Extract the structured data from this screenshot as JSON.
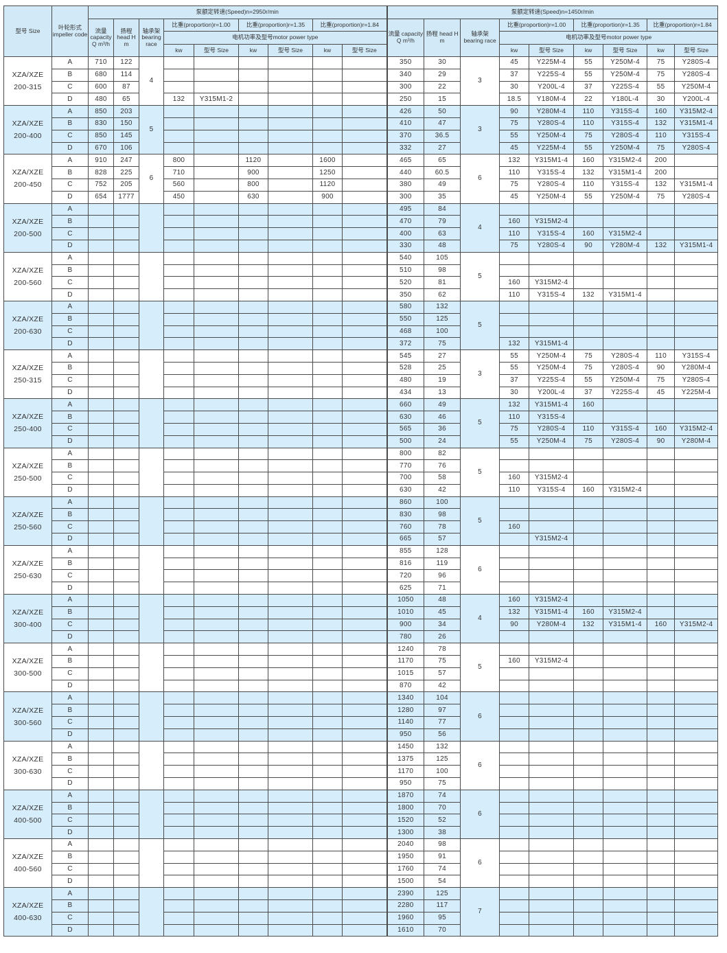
{
  "header": {
    "size": "型号 Size",
    "impeller": "叶轮形式 impeller code",
    "capacity": "流量 capacity Q m³/h",
    "head": "扬程 head H m",
    "bearing": "轴承架 bearing race",
    "speed_left": "泵额定转速(Speed)n=2950r/min",
    "speed_right": "泵额定转速(Speed)n=1450r/min",
    "prop_100": "比重(proportion)r=1.00",
    "prop_135": "比重(proportion)r=1.35",
    "prop_184": "比重(proportion)r=1.84",
    "motor_type": "电机功率及型号motor power type",
    "kw": "kw",
    "model_size": "型号 Size"
  },
  "groups": [
    {
      "size": "XZA/XZE 200-315",
      "race_l": "4",
      "race_r": "3",
      "rows": [
        {
          "c": "A",
          "l": [
            "710",
            "122"
          ],
          "r": [
            "350",
            "30",
            "45",
            "Y225M-4",
            "55",
            "Y250M-4",
            "75",
            "Y280S-4"
          ]
        },
        {
          "c": "B",
          "l": [
            "680",
            "114"
          ],
          "r": [
            "340",
            "29",
            "37",
            "Y225S-4",
            "55",
            "Y250M-4",
            "75",
            "Y280S-4"
          ]
        },
        {
          "c": "C",
          "l": [
            "600",
            "87"
          ],
          "r": [
            "300",
            "22",
            "30",
            "Y200L-4",
            "37",
            "Y225S-4",
            "55",
            "Y250M-4"
          ]
        },
        {
          "c": "D",
          "l": [
            "480",
            "65",
            "132",
            "Y315M1-2"
          ],
          "r": [
            "250",
            "15",
            "18.5",
            "Y180M-4",
            "22",
            "Y180L-4",
            "30",
            "Y200L-4"
          ]
        }
      ]
    },
    {
      "size": "XZA/XZE 200-400",
      "race_l": "5",
      "race_r": "3",
      "rows": [
        {
          "c": "A",
          "l": [
            "850",
            "203"
          ],
          "r": [
            "426",
            "50",
            "90",
            "Y280M-4",
            "110",
            "Y315S-4",
            "160",
            "Y315M2-4"
          ]
        },
        {
          "c": "B",
          "l": [
            "830",
            "150"
          ],
          "r": [
            "410",
            "47",
            "75",
            "Y280S-4",
            "110",
            "Y315S-4",
            "132",
            "Y315M1-4"
          ]
        },
        {
          "c": "C",
          "l": [
            "850",
            "145"
          ],
          "r": [
            "370",
            "36.5",
            "55",
            "Y250M-4",
            "75",
            "Y280S-4",
            "110",
            "Y315S-4"
          ]
        },
        {
          "c": "D",
          "l": [
            "670",
            "106"
          ],
          "r": [
            "332",
            "27",
            "45",
            "Y225M-4",
            "55",
            "Y250M-4",
            "75",
            "Y280S-4"
          ]
        }
      ]
    },
    {
      "size": "XZA/XZE 200-450",
      "race_l": "6",
      "race_r": "6",
      "rows": [
        {
          "c": "A",
          "l": [
            "910",
            "247",
            "800",
            "",
            "1120",
            "",
            "1600",
            ""
          ],
          "r": [
            "465",
            "65",
            "132",
            "Y315M1-4",
            "160",
            "Y315M2-4",
            "200",
            ""
          ]
        },
        {
          "c": "B",
          "l": [
            "828",
            "225",
            "710",
            "",
            "900",
            "",
            "1250",
            ""
          ],
          "r": [
            "440",
            "60.5",
            "110",
            "Y315S-4",
            "132",
            "Y315M1-4",
            "200",
            ""
          ]
        },
        {
          "c": "C",
          "l": [
            "752",
            "205",
            "560",
            "",
            "800",
            "",
            "1120",
            ""
          ],
          "r": [
            "380",
            "49",
            "75",
            "Y280S-4",
            "110",
            "Y315S-4",
            "132",
            "Y315M1-4"
          ]
        },
        {
          "c": "D",
          "l": [
            "654",
            "1777",
            "450",
            "",
            "630",
            "",
            "900",
            ""
          ],
          "r": [
            "300",
            "35",
            "45",
            "Y250M-4",
            "55",
            "Y250M-4",
            "75",
            "Y280S-4"
          ]
        }
      ]
    },
    {
      "size": "XZA/XZE 200-500",
      "race_l": "",
      "race_r": "4",
      "rows": [
        {
          "c": "A",
          "l": [],
          "r": [
            "495",
            "84"
          ]
        },
        {
          "c": "B",
          "l": [],
          "r": [
            "470",
            "79",
            "160",
            "Y315M2-4"
          ]
        },
        {
          "c": "C",
          "l": [],
          "r": [
            "400",
            "63",
            "110",
            "Y315S-4",
            "160",
            "Y315M2-4"
          ]
        },
        {
          "c": "D",
          "l": [],
          "r": [
            "330",
            "48",
            "75",
            "Y280S-4",
            "90",
            "Y280M-4",
            "132",
            "Y315M1-4"
          ]
        }
      ]
    },
    {
      "size": "XZA/XZE 200-560",
      "race_l": "",
      "race_r": "5",
      "rows": [
        {
          "c": "A",
          "l": [],
          "r": [
            "540",
            "105"
          ]
        },
        {
          "c": "B",
          "l": [],
          "r": [
            "510",
            "98"
          ]
        },
        {
          "c": "C",
          "l": [],
          "r": [
            "520",
            "81",
            "160",
            "Y315M2-4"
          ]
        },
        {
          "c": "D",
          "l": [],
          "r": [
            "350",
            "62",
            "110",
            "Y315S-4",
            "132",
            "Y315M1-4"
          ]
        }
      ]
    },
    {
      "size": "XZA/XZE 200-630",
      "race_l": "",
      "race_r": "5",
      "rows": [
        {
          "c": "A",
          "l": [],
          "r": [
            "580",
            "132"
          ]
        },
        {
          "c": "B",
          "l": [],
          "r": [
            "550",
            "125"
          ]
        },
        {
          "c": "C",
          "l": [],
          "r": [
            "468",
            "100"
          ]
        },
        {
          "c": "D",
          "l": [],
          "r": [
            "372",
            "75",
            "132",
            "Y315M1-4"
          ]
        }
      ]
    },
    {
      "size": "XZA/XZE 250-315",
      "race_l": "",
      "race_r": "3",
      "rows": [
        {
          "c": "A",
          "l": [],
          "r": [
            "545",
            "27",
            "55",
            "Y250M-4",
            "75",
            "Y280S-4",
            "110",
            "Y315S-4"
          ]
        },
        {
          "c": "B",
          "l": [],
          "r": [
            "528",
            "25",
            "55",
            "Y250M-4",
            "75",
            "Y280S-4",
            "90",
            "Y280M-4"
          ]
        },
        {
          "c": "C",
          "l": [],
          "r": [
            "480",
            "19",
            "37",
            "Y225S-4",
            "55",
            "Y250M-4",
            "75",
            "Y280S-4"
          ]
        },
        {
          "c": "D",
          "l": [],
          "r": [
            "434",
            "13",
            "30",
            "Y200L-4",
            "37",
            "Y225S-4",
            "45",
            "Y225M-4"
          ]
        }
      ]
    },
    {
      "size": "XZA/XZE 250-400",
      "race_l": "",
      "race_r": "5",
      "rows": [
        {
          "c": "A",
          "l": [],
          "r": [
            "660",
            "49",
            "132",
            "Y315M1-4",
            "160"
          ]
        },
        {
          "c": "B",
          "l": [],
          "r": [
            "630",
            "46",
            "110",
            "Y315S-4"
          ]
        },
        {
          "c": "C",
          "l": [],
          "r": [
            "565",
            "36",
            "75",
            "Y280S-4",
            "110",
            "Y315S-4",
            "160",
            "Y315M2-4"
          ]
        },
        {
          "c": "D",
          "l": [],
          "r": [
            "500",
            "24",
            "55",
            "Y250M-4",
            "75",
            "Y280S-4",
            "90",
            "Y280M-4"
          ]
        }
      ]
    },
    {
      "size": "XZA/XZE 250-500",
      "race_l": "",
      "race_r": "5",
      "rows": [
        {
          "c": "A",
          "l": [],
          "r": [
            "800",
            "82"
          ]
        },
        {
          "c": "B",
          "l": [],
          "r": [
            "770",
            "76"
          ]
        },
        {
          "c": "C",
          "l": [],
          "r": [
            "700",
            "58",
            "160",
            "Y315M2-4"
          ]
        },
        {
          "c": "D",
          "l": [],
          "r": [
            "630",
            "42",
            "110",
            "Y315S-4",
            "160",
            "Y315M2-4"
          ]
        }
      ]
    },
    {
      "size": "XZA/XZE 250-560",
      "race_l": "",
      "race_r": "5",
      "rows": [
        {
          "c": "A",
          "l": [],
          "r": [
            "860",
            "100"
          ]
        },
        {
          "c": "B",
          "l": [],
          "r": [
            "830",
            "98"
          ]
        },
        {
          "c": "C",
          "l": [],
          "r": [
            "760",
            "78",
            "160"
          ]
        },
        {
          "c": "D",
          "l": [],
          "r": [
            "665",
            "57",
            "",
            "Y315M2-4"
          ]
        }
      ]
    },
    {
      "size": "XZA/XZE 250-630",
      "race_l": "",
      "race_r": "6",
      "rows": [
        {
          "c": "A",
          "l": [],
          "r": [
            "855",
            "128"
          ]
        },
        {
          "c": "B",
          "l": [],
          "r": [
            "816",
            "119"
          ]
        },
        {
          "c": "C",
          "l": [],
          "r": [
            "720",
            "96"
          ]
        },
        {
          "c": "D",
          "l": [],
          "r": [
            "625",
            "71"
          ]
        }
      ]
    },
    {
      "size": "XZA/XZE 300-400",
      "race_l": "",
      "race_r": "4",
      "rows": [
        {
          "c": "A",
          "l": [],
          "r": [
            "1050",
            "48",
            "160",
            "Y315M2-4"
          ]
        },
        {
          "c": "B",
          "l": [],
          "r": [
            "1010",
            "45",
            "132",
            "Y315M1-4",
            "160",
            "Y315M2-4"
          ]
        },
        {
          "c": "C",
          "l": [],
          "r": [
            "900",
            "34",
            "90",
            "Y280M-4",
            "132",
            "Y315M1-4",
            "160",
            "Y315M2-4"
          ]
        },
        {
          "c": "D",
          "l": [],
          "r": [
            "780",
            "26"
          ]
        }
      ]
    },
    {
      "size": "XZA/XZE 300-500",
      "race_l": "",
      "race_r": "5",
      "rows": [
        {
          "c": "A",
          "l": [],
          "r": [
            "1240",
            "78"
          ]
        },
        {
          "c": "B",
          "l": [],
          "r": [
            "1170",
            "75",
            "160",
            "Y315M2-4"
          ]
        },
        {
          "c": "C",
          "l": [],
          "r": [
            "1015",
            "57"
          ]
        },
        {
          "c": "D",
          "l": [],
          "r": [
            "870",
            "42"
          ]
        }
      ]
    },
    {
      "size": "XZA/XZE 300-560",
      "race_l": "",
      "race_r": "6",
      "rows": [
        {
          "c": "A",
          "l": [],
          "r": [
            "1340",
            "104"
          ]
        },
        {
          "c": "B",
          "l": [],
          "r": [
            "1280",
            "97"
          ]
        },
        {
          "c": "C",
          "l": [],
          "r": [
            "1140",
            "77"
          ]
        },
        {
          "c": "D",
          "l": [],
          "r": [
            "950",
            "56"
          ]
        }
      ]
    },
    {
      "size": "XZA/XZE 300-630",
      "race_l": "",
      "race_r": "6",
      "rows": [
        {
          "c": "A",
          "l": [],
          "r": [
            "1450",
            "132"
          ]
        },
        {
          "c": "B",
          "l": [],
          "r": [
            "1375",
            "125"
          ]
        },
        {
          "c": "C",
          "l": [],
          "r": [
            "1170",
            "100"
          ]
        },
        {
          "c": "D",
          "l": [],
          "r": [
            "950",
            "75"
          ]
        }
      ]
    },
    {
      "size": "XZA/XZE 400-500",
      "race_l": "",
      "race_r": "6",
      "rows": [
        {
          "c": "A",
          "l": [],
          "r": [
            "1870",
            "74"
          ]
        },
        {
          "c": "B",
          "l": [],
          "r": [
            "1800",
            "70"
          ]
        },
        {
          "c": "C",
          "l": [],
          "r": [
            "1520",
            "52"
          ]
        },
        {
          "c": "D",
          "l": [],
          "r": [
            "1300",
            "38"
          ]
        }
      ]
    },
    {
      "size": "XZA/XZE 400-560",
      "race_l": "",
      "race_r": "6",
      "rows": [
        {
          "c": "A",
          "l": [],
          "r": [
            "2040",
            "98"
          ]
        },
        {
          "c": "B",
          "l": [],
          "r": [
            "1950",
            "91"
          ]
        },
        {
          "c": "C",
          "l": [],
          "r": [
            "1760",
            "74"
          ]
        },
        {
          "c": "D",
          "l": [],
          "r": [
            "1500",
            "54"
          ]
        }
      ]
    },
    {
      "size": "XZA/XZE 400-630",
      "race_l": "",
      "race_r": "7",
      "rows": [
        {
          "c": "A",
          "l": [],
          "r": [
            "2390",
            "125"
          ]
        },
        {
          "c": "B",
          "l": [],
          "r": [
            "2280",
            "117"
          ]
        },
        {
          "c": "C",
          "l": [],
          "r": [
            "1960",
            "95"
          ]
        },
        {
          "c": "D",
          "l": [],
          "r": [
            "1610",
            "70"
          ]
        }
      ]
    }
  ]
}
